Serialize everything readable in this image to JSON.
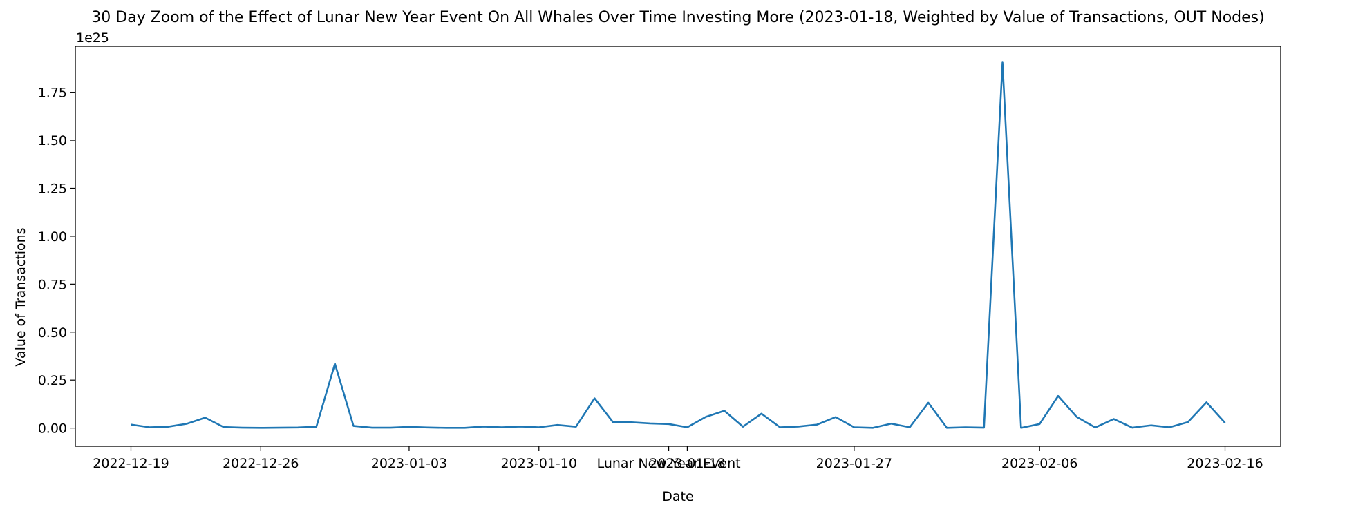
{
  "chart_data": {
    "type": "line",
    "title": "30 Day Zoom of the Effect of Lunar New Year Event On All Whales Over Time Investing More (2023-01-18, Weighted by Value of Transactions, OUT Nodes)",
    "xlabel": "Date",
    "ylabel": "Value of Transactions",
    "y_offset_label": "1e25",
    "y_scale": "1e25",
    "xlim": [
      "2022-12-16",
      "2023-02-19"
    ],
    "ylim": [
      -0.095,
      1.99
    ],
    "grid": false,
    "x_ticks": [
      {
        "date": "2022-12-19",
        "label": "2022-12-19"
      },
      {
        "date": "2022-12-26",
        "label": "2022-12-26"
      },
      {
        "date": "2023-01-03",
        "label": "2023-01-03"
      },
      {
        "date": "2023-01-10",
        "label": "2023-01-10"
      },
      {
        "date": "2023-01-17",
        "label": "Lunar New Year Event"
      },
      {
        "date": "2023-01-18",
        "label": "2023-01-18"
      },
      {
        "date": "2023-01-27",
        "label": "2023-01-27"
      },
      {
        "date": "2023-02-06",
        "label": "2023-02-06"
      },
      {
        "date": "2023-02-16",
        "label": "2023-02-16"
      }
    ],
    "y_ticks": [
      {
        "value": 0.0,
        "label": "0.00"
      },
      {
        "value": 0.25,
        "label": "0.25"
      },
      {
        "value": 0.5,
        "label": "0.50"
      },
      {
        "value": 0.75,
        "label": "0.75"
      },
      {
        "value": 1.0,
        "label": "1.00"
      },
      {
        "value": 1.25,
        "label": "1.25"
      },
      {
        "value": 1.5,
        "label": "1.50"
      },
      {
        "value": 1.75,
        "label": "1.75"
      }
    ],
    "series": [
      {
        "color": "#1f77b4",
        "points": [
          {
            "x": "2022-12-19",
            "y": 0.018
          },
          {
            "x": "2022-12-20",
            "y": 0.004
          },
          {
            "x": "2022-12-21",
            "y": 0.007
          },
          {
            "x": "2022-12-22",
            "y": 0.022
          },
          {
            "x": "2022-12-23",
            "y": 0.054
          },
          {
            "x": "2022-12-24",
            "y": 0.005
          },
          {
            "x": "2022-12-25",
            "y": 0.002
          },
          {
            "x": "2022-12-26",
            "y": 0.001
          },
          {
            "x": "2022-12-27",
            "y": 0.002
          },
          {
            "x": "2022-12-28",
            "y": 0.003
          },
          {
            "x": "2022-12-29",
            "y": 0.007
          },
          {
            "x": "2022-12-30",
            "y": 0.335
          },
          {
            "x": "2022-12-31",
            "y": 0.011
          },
          {
            "x": "2023-01-01",
            "y": 0.002
          },
          {
            "x": "2023-01-02",
            "y": 0.002
          },
          {
            "x": "2023-01-03",
            "y": 0.006
          },
          {
            "x": "2023-01-04",
            "y": 0.003
          },
          {
            "x": "2023-01-05",
            "y": 0.001
          },
          {
            "x": "2023-01-06",
            "y": 0.001
          },
          {
            "x": "2023-01-07",
            "y": 0.008
          },
          {
            "x": "2023-01-08",
            "y": 0.004
          },
          {
            "x": "2023-01-09",
            "y": 0.008
          },
          {
            "x": "2023-01-10",
            "y": 0.004
          },
          {
            "x": "2023-01-11",
            "y": 0.016
          },
          {
            "x": "2023-01-12",
            "y": 0.007
          },
          {
            "x": "2023-01-13",
            "y": 0.155
          },
          {
            "x": "2023-01-14",
            "y": 0.03
          },
          {
            "x": "2023-01-15",
            "y": 0.03
          },
          {
            "x": "2023-01-16",
            "y": 0.024
          },
          {
            "x": "2023-01-17",
            "y": 0.021
          },
          {
            "x": "2023-01-18",
            "y": 0.004
          },
          {
            "x": "2023-01-19",
            "y": 0.058
          },
          {
            "x": "2023-01-20",
            "y": 0.09
          },
          {
            "x": "2023-01-21",
            "y": 0.007
          },
          {
            "x": "2023-01-22",
            "y": 0.075
          },
          {
            "x": "2023-01-23",
            "y": 0.004
          },
          {
            "x": "2023-01-24",
            "y": 0.008
          },
          {
            "x": "2023-01-25",
            "y": 0.018
          },
          {
            "x": "2023-01-26",
            "y": 0.057
          },
          {
            "x": "2023-01-27",
            "y": 0.004
          },
          {
            "x": "2023-01-28",
            "y": 0.001
          },
          {
            "x": "2023-01-29",
            "y": 0.023
          },
          {
            "x": "2023-01-30",
            "y": 0.004
          },
          {
            "x": "2023-01-31",
            "y": 0.132
          },
          {
            "x": "2023-02-01",
            "y": 0.001
          },
          {
            "x": "2023-02-02",
            "y": 0.004
          },
          {
            "x": "2023-02-03",
            "y": 0.002
          },
          {
            "x": "2023-02-04",
            "y": 1.905
          },
          {
            "x": "2023-02-05",
            "y": 0.001
          },
          {
            "x": "2023-02-06",
            "y": 0.021
          },
          {
            "x": "2023-02-07",
            "y": 0.167
          },
          {
            "x": "2023-02-08",
            "y": 0.058
          },
          {
            "x": "2023-02-09",
            "y": 0.003
          },
          {
            "x": "2023-02-10",
            "y": 0.047
          },
          {
            "x": "2023-02-11",
            "y": 0.002
          },
          {
            "x": "2023-02-12",
            "y": 0.014
          },
          {
            "x": "2023-02-13",
            "y": 0.004
          },
          {
            "x": "2023-02-14",
            "y": 0.031
          },
          {
            "x": "2023-02-15",
            "y": 0.134
          },
          {
            "x": "2023-02-16",
            "y": 0.027
          }
        ]
      }
    ]
  }
}
